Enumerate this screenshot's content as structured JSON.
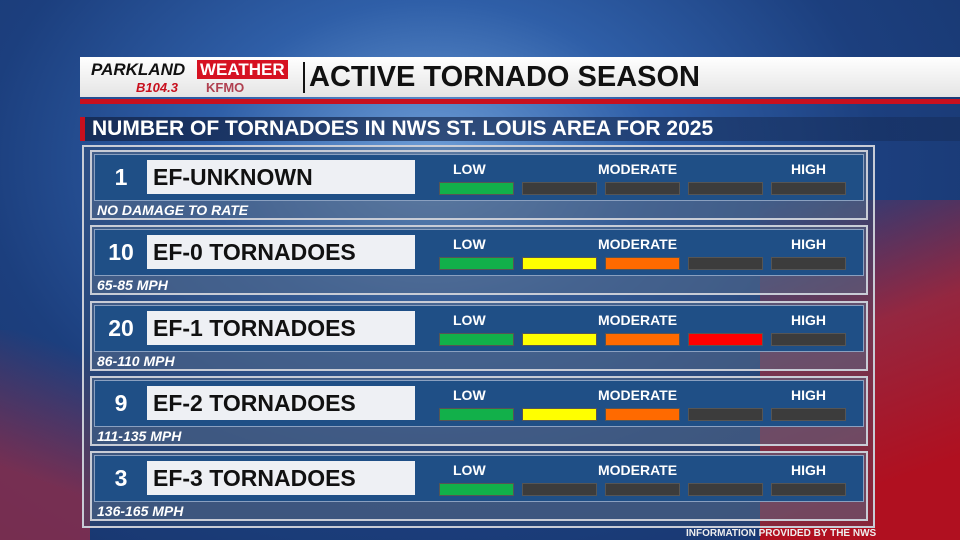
{
  "header": {
    "logo_parkland": "PARKLAND",
    "logo_weather": "WEATHER",
    "logo_station1": "B104.3",
    "logo_station2": "KFMO",
    "title": "ACTIVE TORNADO SEASON"
  },
  "subtitle": "NUMBER OF TORNADOES IN NWS ST. LOUIS AREA FOR 2025",
  "scale_labels": {
    "low": "LOW",
    "moderate": "MODERATE",
    "high": "HIGH"
  },
  "colors": {
    "green": "#12b04a",
    "yellow": "#ffff00",
    "orange": "#ff6a00",
    "red": "#ff0000",
    "off": "#3c3c3c"
  },
  "rows": [
    {
      "count": "1",
      "name": "EF-UNKNOWN",
      "speed": "NO DAMAGE TO RATE",
      "level": 1
    },
    {
      "count": "10",
      "name": "EF-0 TORNADOES",
      "speed": "65-85 MPH",
      "level": 3
    },
    {
      "count": "20",
      "name": "EF-1 TORNADOES",
      "speed": "86-110 MPH",
      "level": 4
    },
    {
      "count": "9",
      "name": "EF-2 TORNADOES",
      "speed": "111-135 MPH",
      "level": 3
    },
    {
      "count": "3",
      "name": "EF-3 TORNADOES",
      "speed": "136-165 MPH",
      "level": 1
    }
  ],
  "footer": "INFORMATION PROVIDED BY THE NWS"
}
